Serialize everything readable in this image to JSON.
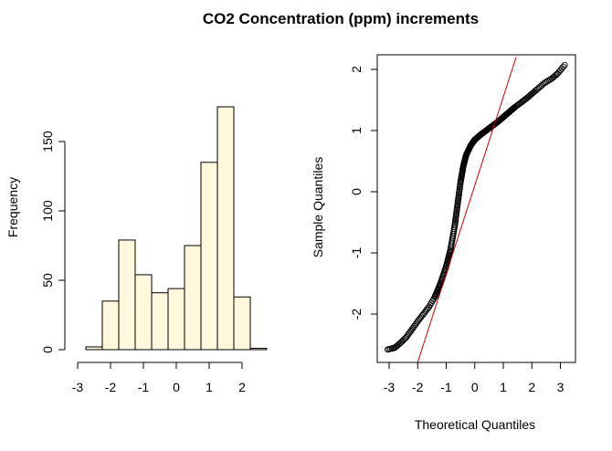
{
  "title": "CO2 Concentration (ppm) increments",
  "chart_data": [
    {
      "type": "bar",
      "subtype": "histogram",
      "xlabel": "",
      "ylabel": "Frequency",
      "bin_edges": [
        -2.75,
        -2.25,
        -1.75,
        -1.25,
        -0.75,
        -0.25,
        0.25,
        0.75,
        1.25,
        1.75,
        2.25,
        2.75
      ],
      "values": [
        2,
        35,
        79,
        54,
        41,
        44,
        75,
        135,
        175,
        38,
        1
      ],
      "xticks": [
        "-3",
        "-2",
        "-1",
        "0",
        "1",
        "2"
      ],
      "yticks": [
        "0",
        "50",
        "100",
        "150"
      ],
      "xlim": [
        -3,
        2
      ],
      "ylim": [
        0,
        175
      ],
      "bar_fill": "#fff8dc",
      "bar_stroke": "#000000"
    },
    {
      "type": "scatter",
      "subtype": "qq-plot",
      "xlabel": "Theoretical Quantiles",
      "ylabel": "Sample Quantiles",
      "xticks": [
        "-3",
        "-2",
        "-1",
        "0",
        "1",
        "2",
        "3"
      ],
      "yticks": [
        "-2",
        "-1",
        "0",
        "1",
        "2"
      ],
      "xlim": [
        -3.3,
        3.3
      ],
      "ylim": [
        -2.8,
        2.2
      ],
      "reference_line": {
        "p1": [
          -2.0,
          -2.8
        ],
        "p2": [
          1.45,
          2.2
        ],
        "color": "#cc0000"
      },
      "curve_points": [
        [
          -3.05,
          -2.58
        ],
        [
          -2.8,
          -2.55
        ],
        [
          -2.6,
          -2.47
        ],
        [
          -2.4,
          -2.38
        ],
        [
          -2.2,
          -2.25
        ],
        [
          -2.0,
          -2.12
        ],
        [
          -1.8,
          -2.0
        ],
        [
          -1.6,
          -1.88
        ],
        [
          -1.4,
          -1.72
        ],
        [
          -1.2,
          -1.5
        ],
        [
          -1.0,
          -1.22
        ],
        [
          -0.85,
          -0.95
        ],
        [
          -0.7,
          -0.55
        ],
        [
          -0.6,
          -0.2
        ],
        [
          -0.5,
          0.15
        ],
        [
          -0.4,
          0.42
        ],
        [
          -0.3,
          0.6
        ],
        [
          -0.15,
          0.75
        ],
        [
          0.0,
          0.85
        ],
        [
          0.2,
          0.93
        ],
        [
          0.4,
          1.0
        ],
        [
          0.6,
          1.07
        ],
        [
          0.8,
          1.14
        ],
        [
          1.0,
          1.22
        ],
        [
          1.2,
          1.3
        ],
        [
          1.4,
          1.38
        ],
        [
          1.6,
          1.45
        ],
        [
          1.8,
          1.52
        ],
        [
          2.0,
          1.6
        ],
        [
          2.2,
          1.68
        ],
        [
          2.45,
          1.78
        ],
        [
          2.7,
          1.85
        ],
        [
          2.9,
          1.93
        ],
        [
          3.15,
          2.07
        ]
      ],
      "point_color": "#000000"
    }
  ]
}
